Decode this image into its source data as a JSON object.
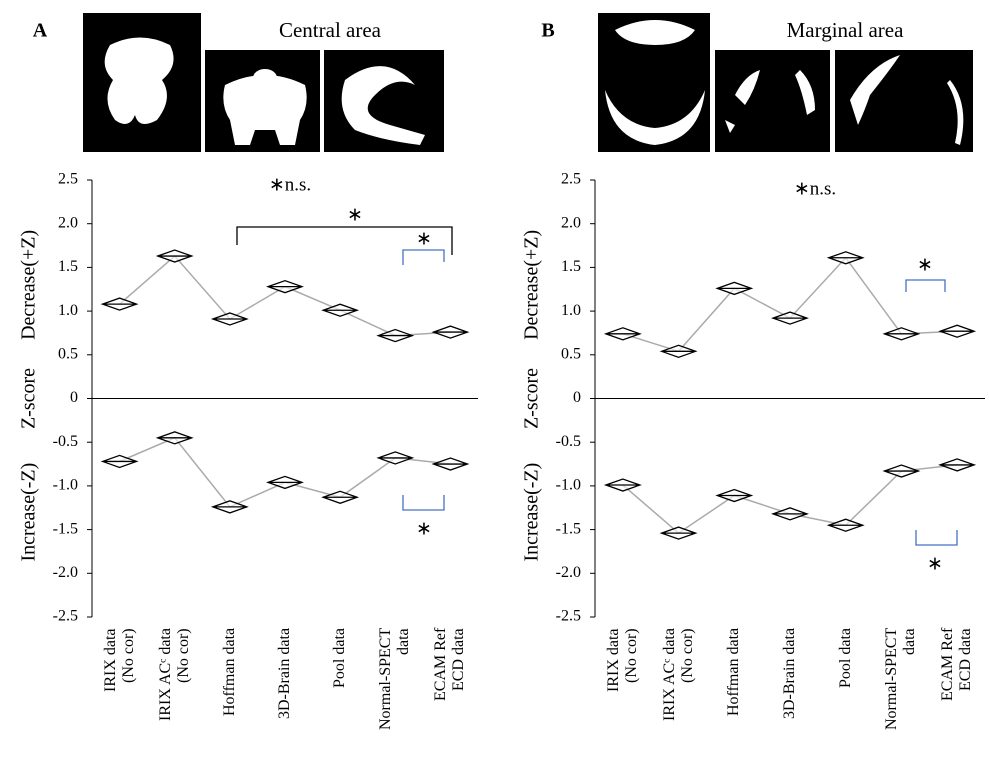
{
  "chart_data": [
    {
      "type": "line",
      "panel": "A",
      "title": "Central area",
      "ylabel": "Z-score",
      "categories": [
        "IRIX data\n(No cor)",
        "IRIX ACᶜ data\n(No cor)",
        "Hoffman data",
        "3D-Brain data",
        "Pool data",
        "Normal-SPECT\ndata",
        "ECAM Ref\nECD data"
      ],
      "series": [
        {
          "name": "Decrease(+Z)",
          "color": "#000000",
          "values": [
            1.08,
            1.63,
            0.91,
            1.28,
            1.01,
            0.72,
            0.76
          ]
        },
        {
          "name": "Increase(-Z)",
          "color": "#000000",
          "values": [
            -0.72,
            -0.45,
            -1.24,
            -0.96,
            -1.13,
            -0.68,
            -0.75
          ]
        }
      ],
      "ylim": [
        -2.5,
        2.5
      ],
      "yticks": [
        2.5,
        {
          "value": 2,
          "label": "2.0"
        },
        1.5,
        {
          "value": 1,
          "label": "1.0"
        },
        0.5,
        0,
        -0.5,
        {
          "value": -1,
          "label": "-1.0"
        },
        -1.5,
        {
          "value": -2,
          "label": "-2.0"
        },
        -2.5
      ],
      "annotations": [
        "∗n.s.",
        "∗",
        "∗",
        "∗"
      ]
    },
    {
      "type": "line",
      "panel": "B",
      "title": "Marginal area",
      "ylabel": "Z-score",
      "categories": [
        "IRIX data\n(No cor)",
        "IRIX ACᶜ data\n(No cor)",
        "Hoffman data",
        "3D-Brain data",
        "Pool data",
        "Normal-SPECT\ndata",
        "ECAM Ref\nECD data"
      ],
      "series": [
        {
          "name": "Decrease(+Z)",
          "color": "#000000",
          "values": [
            0.74,
            0.54,
            1.26,
            0.92,
            1.61,
            0.74,
            0.77
          ]
        },
        {
          "name": "Increase(-Z)",
          "color": "#000000",
          "values": [
            -0.99,
            -1.54,
            -1.11,
            -1.32,
            -1.45,
            -0.83,
            -0.76
          ]
        }
      ],
      "ylim": [
        -2.5,
        2.5
      ],
      "yticks": [
        2.5,
        {
          "value": 2,
          "label": "2.0"
        },
        1.5,
        {
          "value": 1,
          "label": "1.0"
        },
        0.5,
        0,
        -0.5,
        {
          "value": -1,
          "label": "-1.0"
        },
        -1.5,
        {
          "value": -2,
          "label": "-2.0"
        },
        -2.5
      ],
      "annotations": [
        "∗n.s.",
        "∗",
        "∗"
      ]
    }
  ]
}
